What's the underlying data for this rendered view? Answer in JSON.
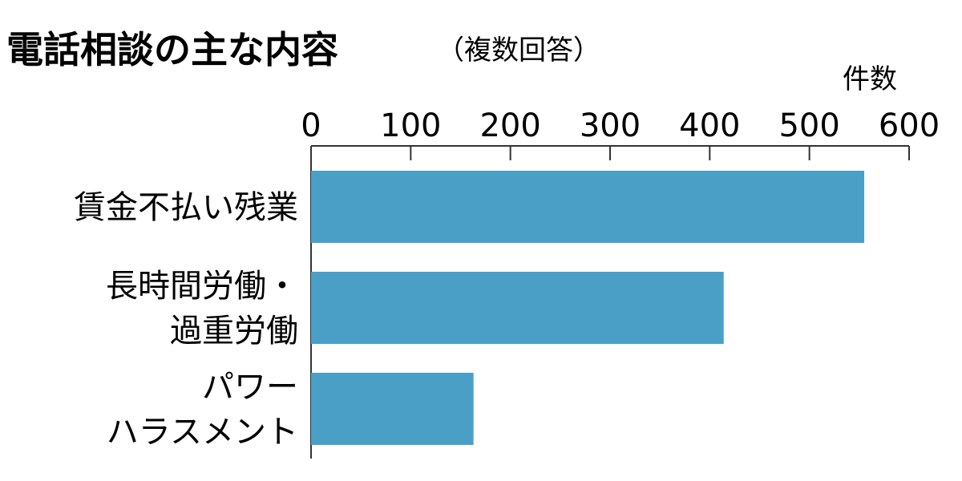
{
  "chart_data": {
    "type": "bar",
    "orientation": "horizontal",
    "title": "電話相談の主な内容",
    "subtitle": "（複数回答）",
    "unit_label": "件数",
    "categories": [
      [
        "賃金不払い残業"
      ],
      [
        "長時間労働・",
        "過重労働"
      ],
      [
        "パワー",
        "ハラスメント"
      ]
    ],
    "values": [
      555,
      414,
      163
    ],
    "xlim": [
      0,
      600
    ],
    "ticks": [
      0,
      100,
      200,
      300,
      400,
      500,
      600
    ],
    "bar_color": "#4a9fc7",
    "axis_color": "#333333",
    "grid": false
  }
}
